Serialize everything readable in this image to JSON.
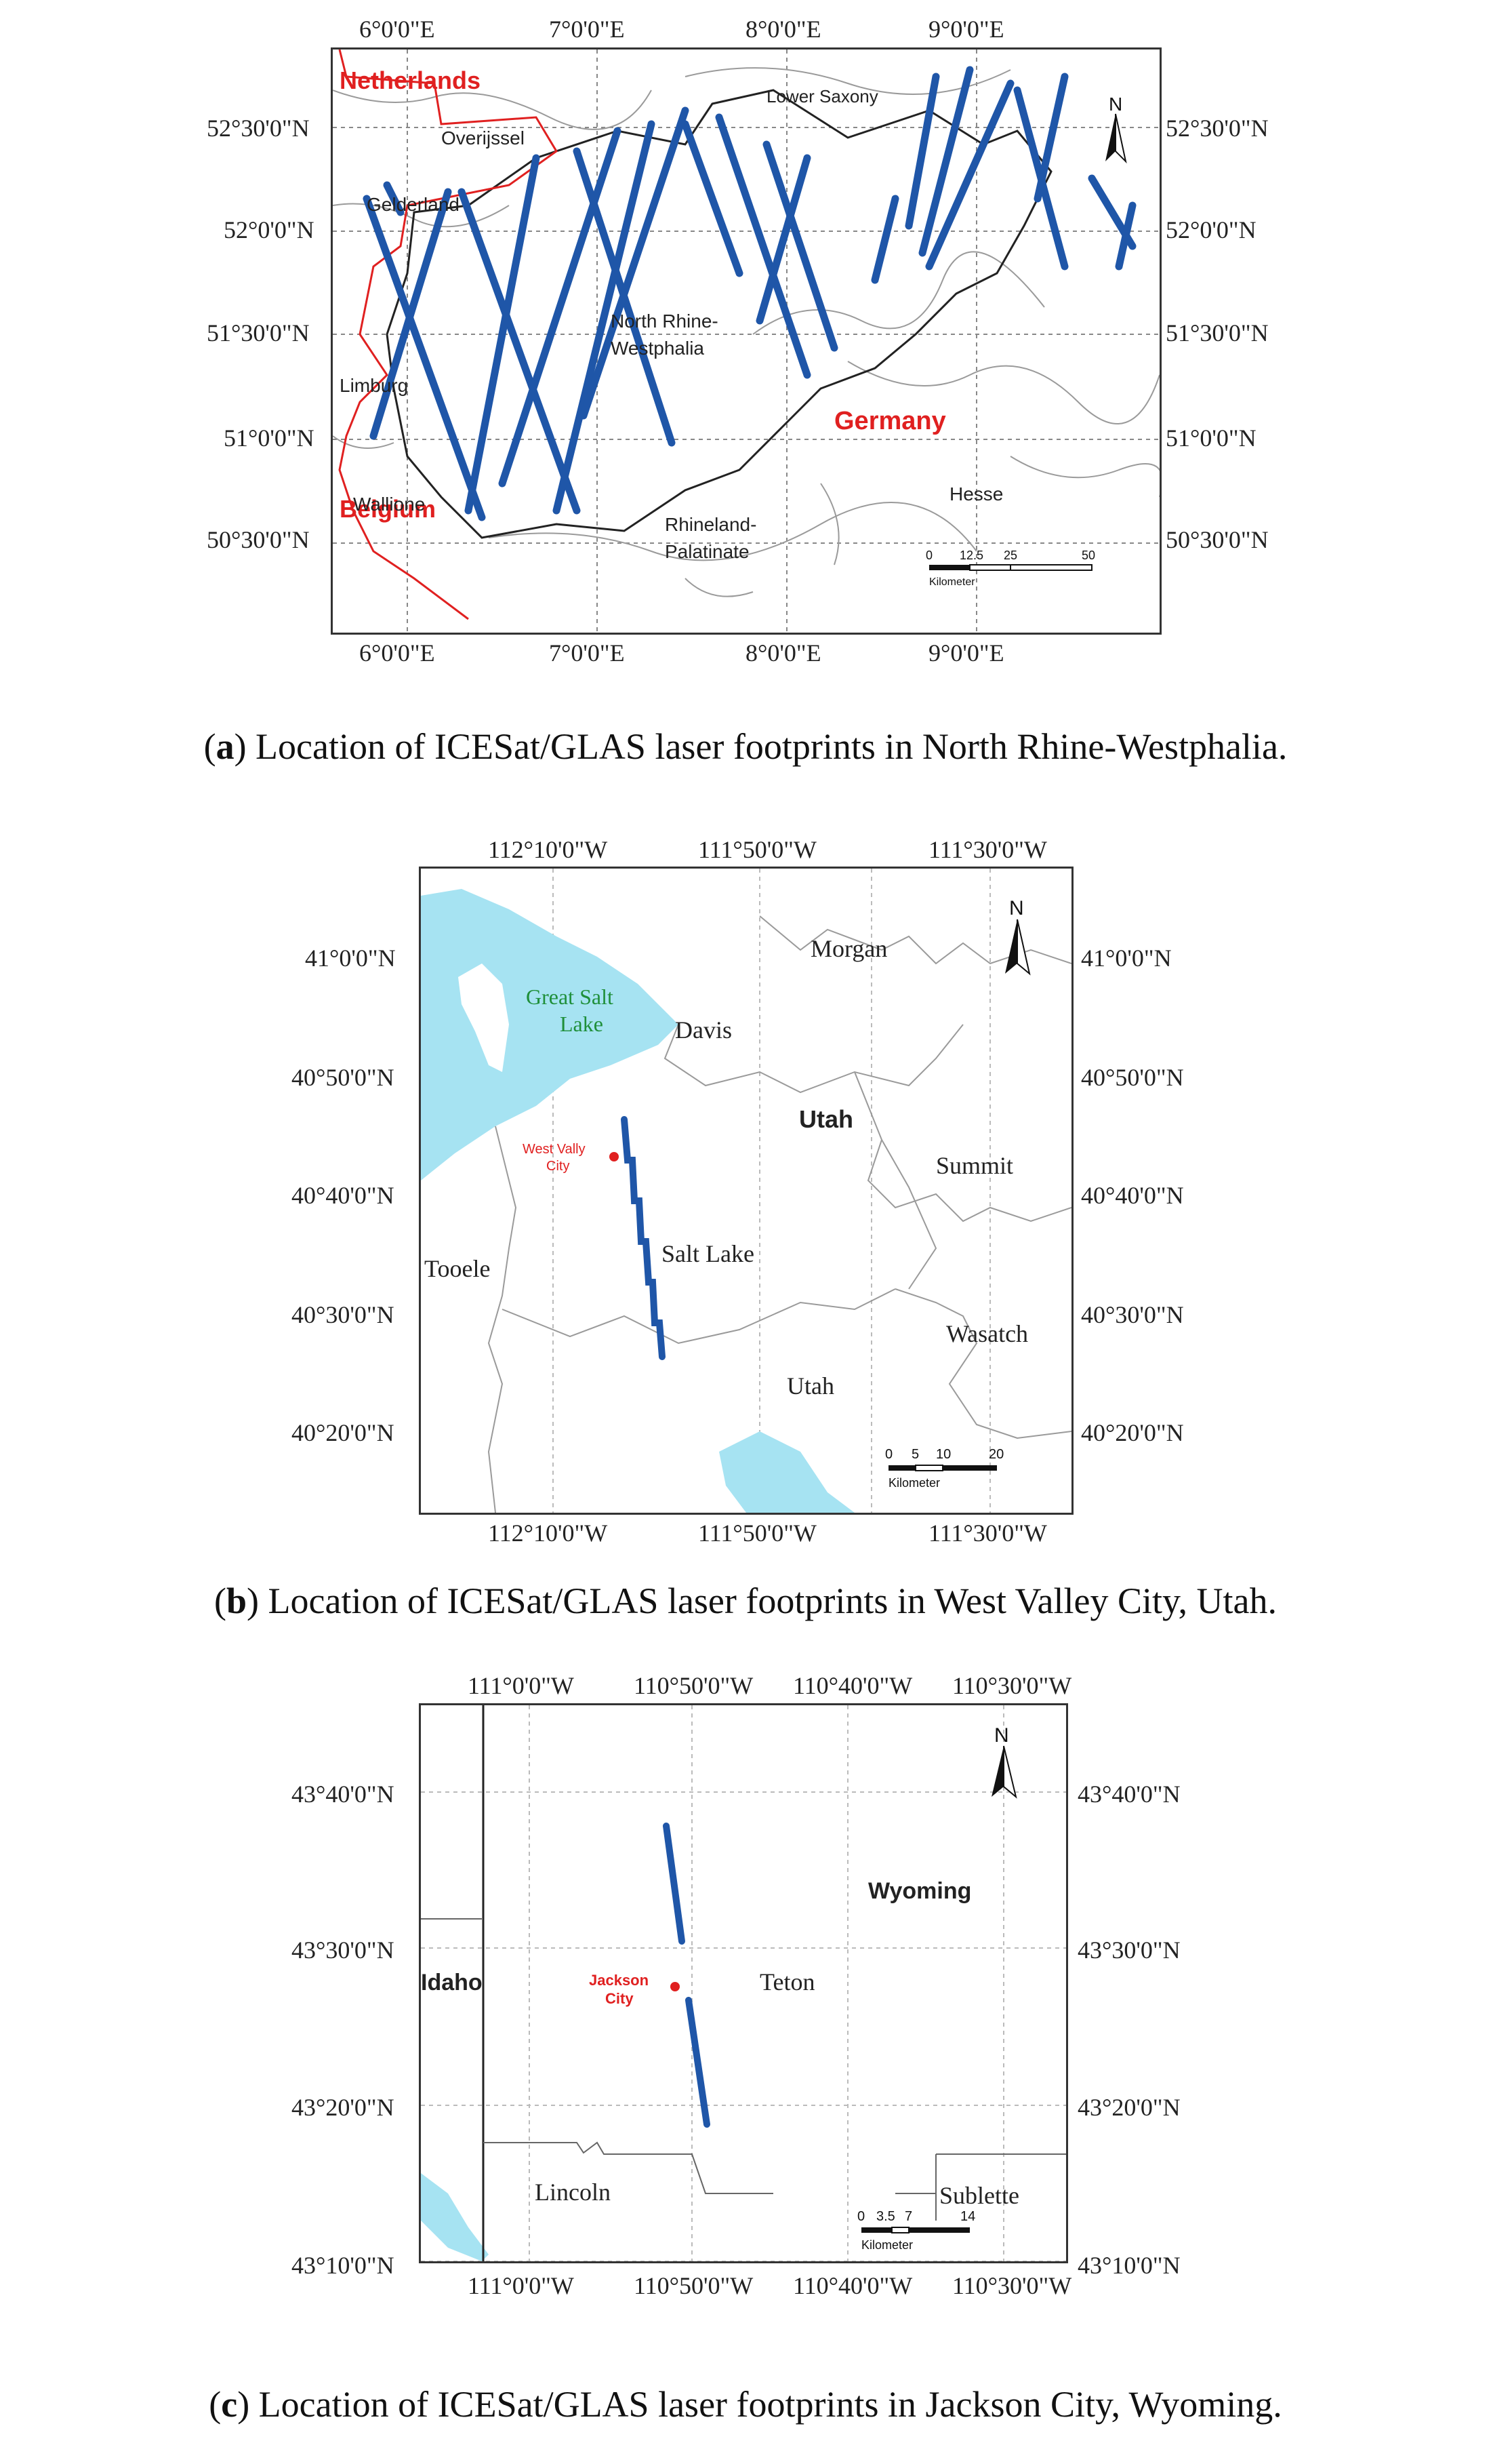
{
  "panels": [
    {
      "letter": "a",
      "caption_before": "(",
      "caption_after": ") Location of ICESat/GLAS laser footprints in North Rhine-Westphalia.",
      "top_ticks": [
        "6°0'0\"E",
        "7°0'0\"E",
        "8°0'0\"E",
        "9°0'0\"E"
      ],
      "bottom_ticks": [
        "6°0'0\"E",
        "7°0'0\"E",
        "8°0'0\"E",
        "9°0'0\"E"
      ],
      "lat_ticks": [
        "52°30'0\"N",
        "52°0'0\"N",
        "51°30'0\"N",
        "51°0'0\"N",
        "50°30'0\"N"
      ],
      "countries": [
        "Netherlands",
        "Germany",
        "Belgium"
      ],
      "regions": [
        "Lower Saxony",
        "Overijssel",
        "Gelderland",
        "North Rhine-",
        "Westphalia",
        "Limburg",
        "Wallione",
        "Rhineland-",
        "Palatinate",
        "Hesse"
      ],
      "north": "N",
      "scale": {
        "ticks": [
          "0",
          "12.5",
          "25",
          "50"
        ],
        "unit": "Kilometer"
      },
      "colors": {
        "track": "#1f56a8",
        "border": "#e02020",
        "country_label": "#e02020"
      }
    },
    {
      "letter": "b",
      "caption_before": "(",
      "caption_after": ") Location of ICESat/GLAS laser footprints in West Valley City, Utah.",
      "top_ticks": [
        "112°10'0\"W",
        "111°50'0\"W",
        "111°30'0\"W"
      ],
      "bottom_ticks": [
        "112°10'0\"W",
        "111°50'0\"W",
        "111°30'0\"W"
      ],
      "lat_ticks": [
        "41°0'0\"N",
        "40°50'0\"N",
        "40°40'0\"N",
        "40°30'0\"N",
        "40°20'0\"N"
      ],
      "lake": [
        "Great Salt",
        "Lake"
      ],
      "city": [
        "West Vally",
        "City"
      ],
      "regions": [
        "Morgan",
        "Davis",
        "Utah",
        "Summit",
        "Salt Lake",
        "Tooele",
        "Wasatch",
        "Utah"
      ],
      "north": "N",
      "scale": {
        "ticks": [
          "0",
          "5",
          "10",
          "20"
        ],
        "unit": "Kilometer"
      },
      "colors": {
        "track": "#1f56a8",
        "water": "#a6e3f2",
        "lake_label": "#1f8f3a",
        "city": "#e02020"
      }
    },
    {
      "letter": "c",
      "caption_before": "(",
      "caption_after": ") Location of ICESat/GLAS laser footprints in Jackson City, Wyoming.",
      "top_ticks": [
        "111°0'0\"W",
        "110°50'0\"W",
        "110°40'0\"W",
        "110°30'0\"W"
      ],
      "bottom_ticks": [
        "111°0'0\"W",
        "110°50'0\"W",
        "110°40'0\"W",
        "110°30'0\"W"
      ],
      "lat_ticks": [
        "43°40'0\"N",
        "43°30'0\"N",
        "43°20'0\"N",
        "43°10'0\"N"
      ],
      "city": [
        "Jackson",
        "City"
      ],
      "regions": [
        "Wyoming",
        "Idaho",
        "Teton",
        "Lincoln",
        "Sublette"
      ],
      "north": "N",
      "scale": {
        "ticks": [
          "0",
          "3.5",
          "7",
          "14"
        ],
        "unit": "Kilometer"
      },
      "colors": {
        "track": "#1f56a8",
        "water": "#a6e3f2",
        "city": "#e02020"
      }
    }
  ]
}
